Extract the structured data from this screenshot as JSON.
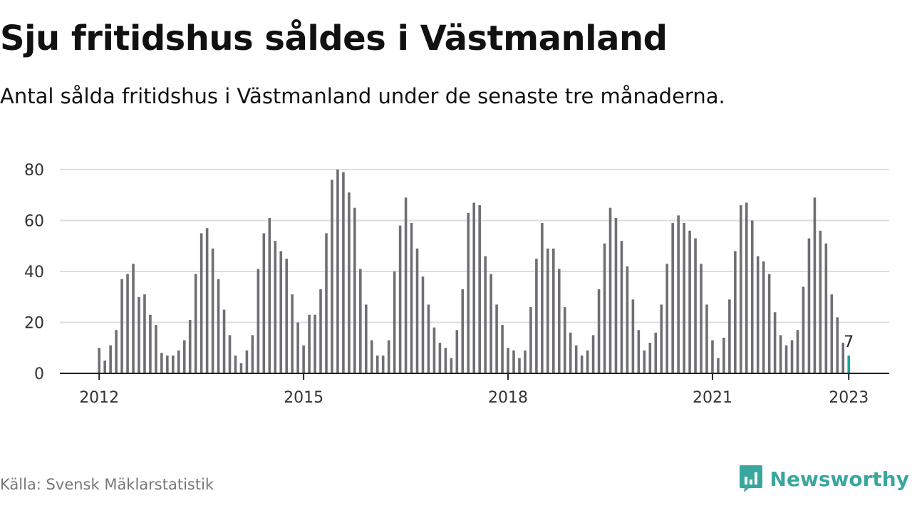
{
  "header": {
    "title": "Sju fritidshus såldes i Västmanland",
    "subtitle": "Antal sålda fritidshus i Västmanland under de senaste tre månaderna."
  },
  "footer": {
    "source": "Källa: Svensk Mäklarstatistik",
    "brand": "Newsworthy"
  },
  "colors": {
    "bar": "#6f6f73",
    "highlight": "#1aa8a0",
    "grid": "#dddddd",
    "axis": "#222222",
    "brand": "#3aa79e"
  },
  "chart_data": {
    "type": "bar",
    "x_axis": "monthly, January 2012 to January 2023",
    "values": [
      10,
      5,
      11,
      17,
      37,
      39,
      43,
      30,
      31,
      23,
      19,
      8,
      7,
      7,
      9,
      13,
      21,
      39,
      55,
      57,
      49,
      37,
      25,
      15,
      7,
      4,
      9,
      15,
      41,
      55,
      61,
      52,
      48,
      45,
      31,
      20,
      11,
      23,
      23,
      33,
      55,
      76,
      80,
      79,
      71,
      65,
      41,
      27,
      13,
      7,
      7,
      13,
      40,
      58,
      69,
      59,
      49,
      38,
      27,
      18,
      12,
      10,
      6,
      17,
      33,
      63,
      67,
      66,
      46,
      39,
      27,
      19,
      10,
      9,
      6,
      9,
      26,
      45,
      59,
      49,
      49,
      41,
      26,
      16,
      11,
      7,
      9,
      15,
      33,
      51,
      65,
      61,
      52,
      42,
      29,
      17,
      9,
      12,
      16,
      27,
      43,
      59,
      62,
      59,
      56,
      53,
      43,
      27,
      13,
      6,
      14,
      29,
      48,
      66,
      67,
      60,
      46,
      44,
      39,
      24,
      15,
      11,
      13,
      17,
      34,
      53,
      69,
      56,
      51,
      31,
      22,
      12,
      7
    ],
    "highlight_index": 132,
    "highlight_label": "7",
    "x_ticks": [
      {
        "label": "2012",
        "index": 0
      },
      {
        "label": "2015",
        "index": 36
      },
      {
        "label": "2018",
        "index": 72
      },
      {
        "label": "2021",
        "index": 108
      },
      {
        "label": "2023",
        "index": 132
      }
    ],
    "y_ticks": [
      0,
      20,
      40,
      60,
      80
    ],
    "ylim": [
      0,
      80
    ],
    "grid": true,
    "legend": "none"
  }
}
